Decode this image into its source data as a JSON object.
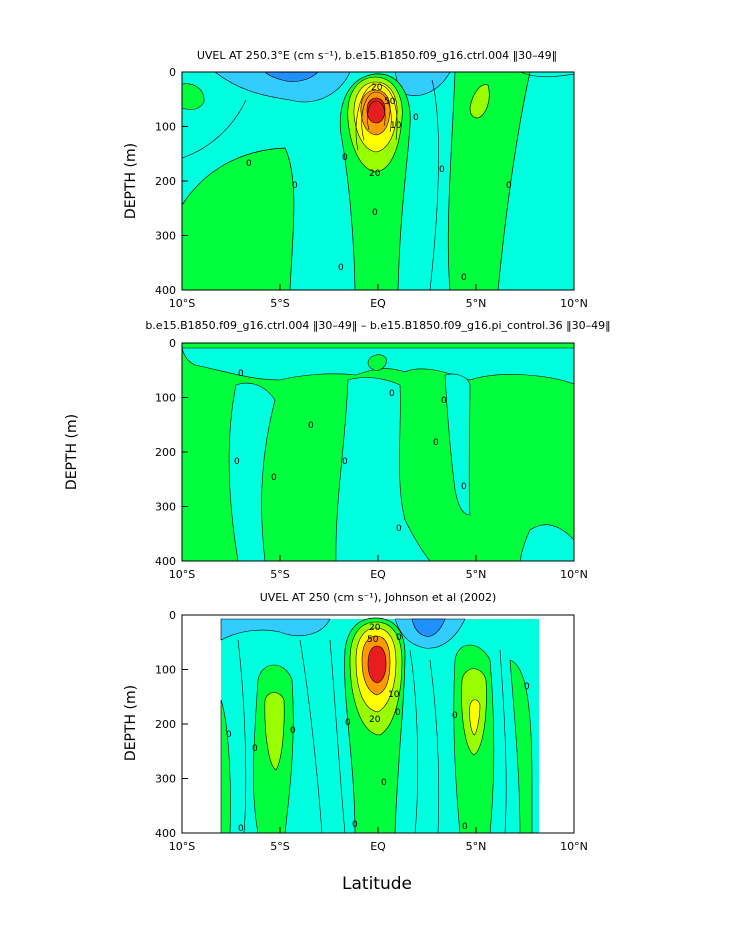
{
  "figure": {
    "x_axis_label": "Latitude"
  },
  "colors": {
    "cyan": "#00ffde",
    "lightblue": "#33ccff",
    "blue": "#1e90ff",
    "green": "#00ff3c",
    "lime": "#99ff00",
    "yellow": "#ffff00",
    "orange": "#ff9900",
    "red": "#e61e1e",
    "contour": "#000000"
  },
  "chart_data": [
    {
      "type": "heatmap",
      "panel": "top",
      "title": "UVEL AT 250.3°E (cm s⁻¹), b.e15.B1850.f09_g16.ctrl.004 ‖30–49‖",
      "ylabel": "DEPTH (m)",
      "xlim": [
        -10,
        10
      ],
      "ylim": [
        400,
        0
      ],
      "x_tick_labels": [
        "10°S",
        "5°S",
        "EQ",
        "5°N",
        "10°N"
      ],
      "y_tick_labels": [
        "0",
        "100",
        "200",
        "300",
        "400"
      ],
      "x_ticks": [
        -10,
        -5,
        0,
        5,
        10
      ],
      "y_ticks": [
        0,
        100,
        200,
        300,
        400
      ],
      "contour_labels": [
        "20",
        "50",
        "0",
        "0",
        "0",
        "0",
        "0",
        "20",
        "0",
        "0",
        "0",
        "0",
        "10"
      ],
      "features": [
        {
          "kind": "jet_core",
          "lat": 0,
          "depth": 85,
          "max_speed": 80
        },
        {
          "kind": "westward_surface",
          "lat_range": [
            -5,
            -2
          ],
          "depth_range": [
            0,
            40
          ]
        }
      ]
    },
    {
      "type": "heatmap",
      "panel": "middle",
      "title": "b.e15.B1850.f09_g16.ctrl.004 ‖30–49‖ – b.e15.B1850.f09_g16.pi_control.36 ‖30–49‖",
      "ylabel": "DEPTH (m)",
      "xlim": [
        -10,
        10
      ],
      "ylim": [
        400,
        0
      ],
      "x_tick_labels": [
        "10°S",
        "5°S",
        "EQ",
        "5°N",
        "10°N"
      ],
      "y_tick_labels": [
        "0",
        "100",
        "200",
        "300",
        "400"
      ],
      "x_ticks": [
        -10,
        -5,
        0,
        5,
        10
      ],
      "y_ticks": [
        0,
        100,
        200,
        300,
        400
      ],
      "contour_labels": [
        "0",
        "0",
        "0",
        "0",
        "0",
        "0",
        "0",
        "0",
        "0",
        "0"
      ]
    },
    {
      "type": "heatmap",
      "panel": "bottom",
      "title": "UVEL AT 250 (cm s⁻¹), Johnson et al (2002)",
      "ylabel": "DEPTH (m)",
      "xlim": [
        -10,
        10
      ],
      "ylim": [
        400,
        0
      ],
      "x_tick_labels": [
        "10°S",
        "5°S",
        "EQ",
        "5°N",
        "10°N"
      ],
      "y_tick_labels": [
        "0",
        "100",
        "200",
        "300",
        "400"
      ],
      "x_ticks": [
        -10,
        -5,
        0,
        5,
        10
      ],
      "y_ticks": [
        0,
        100,
        200,
        300,
        400
      ],
      "data_lat_range": [
        -8,
        8.3
      ],
      "contour_labels": [
        "20",
        "50",
        "0",
        "0",
        "0",
        "0",
        "0",
        "0",
        "20",
        "0",
        "0",
        "0",
        "0",
        "0",
        "10",
        "0"
      ],
      "features": [
        {
          "kind": "jet_core",
          "lat": 0,
          "depth": 75,
          "max_speed": 80
        }
      ]
    }
  ]
}
